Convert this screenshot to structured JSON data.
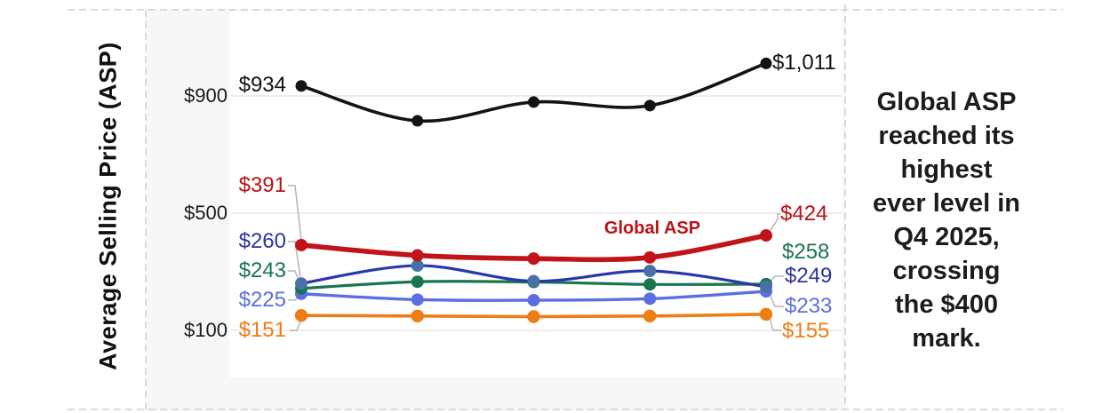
{
  "chart_data": {
    "type": "line",
    "ylabel": "Average Selling Price (ASP)",
    "yticks": [
      {
        "label": "$900",
        "value": 900
      },
      {
        "label": "$500",
        "value": 500
      },
      {
        "label": "$100",
        "value": 100
      }
    ],
    "x_point_count": 5,
    "grid": "horizontal-only",
    "series": [
      {
        "name": "top-black-line",
        "color": "#131313",
        "values": [
          934,
          815,
          879,
          867,
          1011
        ],
        "first_label": "$934",
        "last_label": "$1,011"
      },
      {
        "name": "Global ASP",
        "color": "#c11318",
        "values": [
          391,
          356,
          345,
          349,
          424
        ],
        "first_label": "$391",
        "last_label": "$424",
        "inline_label": "Global ASP"
      },
      {
        "name": "navy-line",
        "color": "#2836b0",
        "marker_color": "#4b70a8",
        "values": [
          260,
          321,
          268,
          303,
          249
        ],
        "first_label": "$260",
        "last_label": "$249"
      },
      {
        "name": "green-line",
        "color": "#18764e",
        "values": [
          243,
          266,
          265,
          257,
          258
        ],
        "first_label": "$243",
        "last_label": "$258"
      },
      {
        "name": "periwinkle-line",
        "color": "#5c6ee2",
        "values": [
          225,
          205,
          203,
          208,
          233
        ],
        "first_label": "$225",
        "last_label": "$233"
      },
      {
        "name": "orange-line",
        "color": "#ee7d13",
        "values": [
          151,
          149,
          147,
          149,
          155
        ],
        "first_label": "$151",
        "last_label": "$155"
      }
    ]
  },
  "annotation": {
    "text": "Global ASP reached its highest ever level in Q4 2025, crossing the $400 mark.",
    "lines": [
      "Global ASP",
      "reached its",
      "highest",
      "ever level in",
      "Q4 2025,",
      "crossing",
      "the $400",
      "mark."
    ]
  }
}
